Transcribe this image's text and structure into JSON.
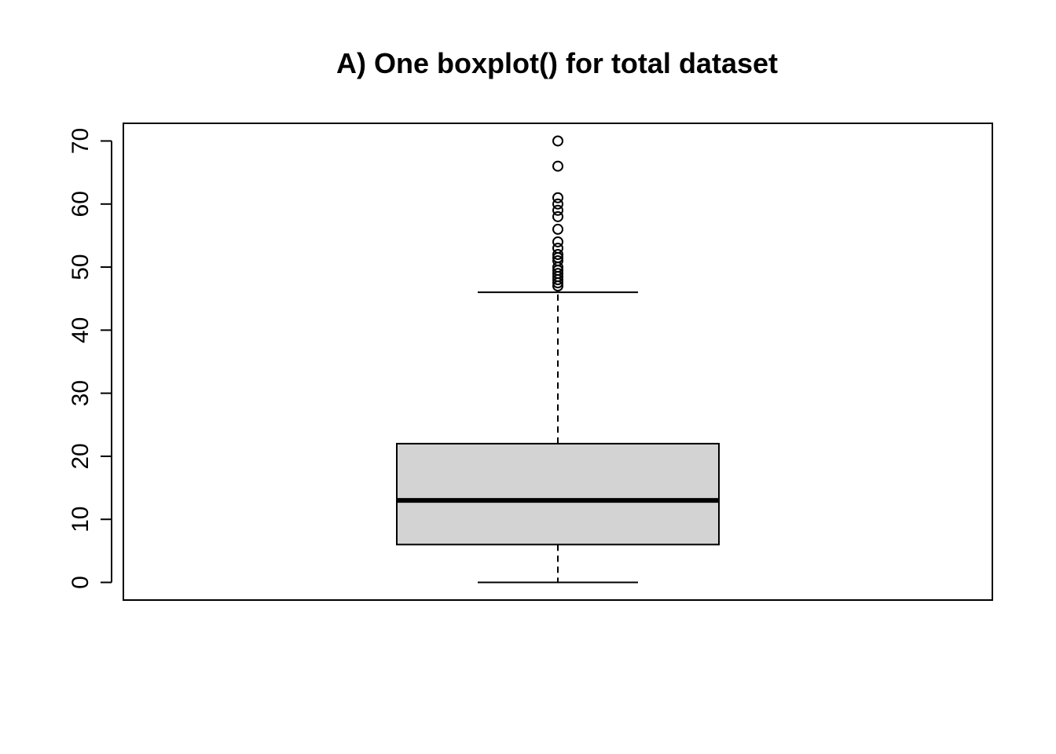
{
  "chart_data": {
    "type": "boxplot",
    "title": "A) One boxplot() for total dataset",
    "xlabel": "",
    "ylabel": "",
    "ylim": [
      -2.8,
      72.8
    ],
    "yticks": [
      0,
      10,
      20,
      30,
      40,
      50,
      60,
      70
    ],
    "grid": false,
    "box": {
      "whisker_low": 0,
      "q1": 6,
      "median": 13,
      "q3": 22,
      "whisker_high": 46
    },
    "outliers": [
      47,
      47.5,
      48,
      48.5,
      49,
      49.5,
      50,
      51,
      51.5,
      52,
      53,
      54,
      56,
      58,
      59,
      60,
      61,
      66,
      70
    ],
    "colors": {
      "box_fill": "#d3d3d3",
      "line": "#000000"
    }
  }
}
